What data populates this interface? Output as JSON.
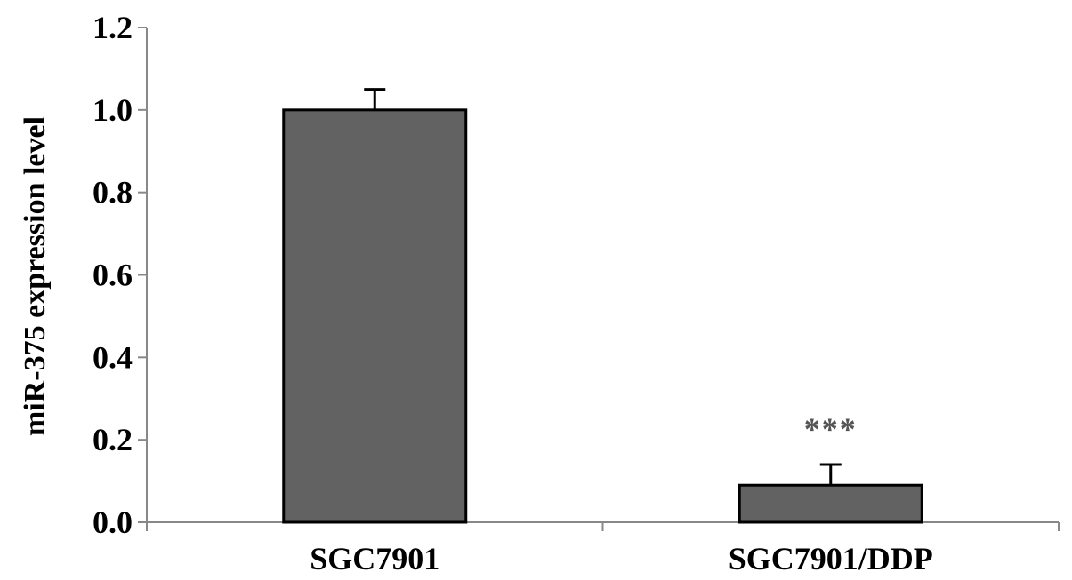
{
  "chart_data": {
    "type": "bar",
    "title": "",
    "xlabel": "",
    "ylabel": "miR-375 expression level",
    "categories": [
      "SGC7901",
      "SGC7901/DDP"
    ],
    "values": [
      1.0,
      0.09
    ],
    "errors": [
      0.05,
      0.05
    ],
    "annotations": [
      "",
      "***"
    ],
    "ylim": [
      0,
      1.2
    ],
    "yticks": [
      "0.0",
      "0.2",
      "0.4",
      "0.6",
      "0.8",
      "1.0",
      "1.2"
    ],
    "grid": false,
    "bar_color": "#626262",
    "bar_edge_color": "#000000"
  }
}
